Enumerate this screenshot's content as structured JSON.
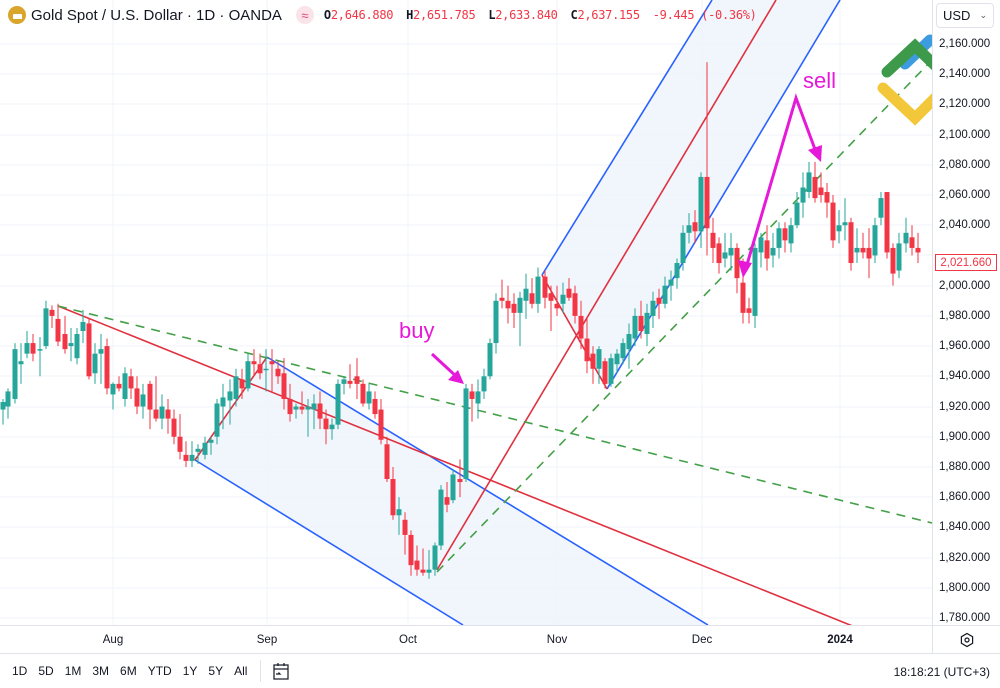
{
  "header": {
    "title": "Gold Spot / U.S. Dollar · 1D · OANDA",
    "market_status_icon": "≈",
    "ohlc": {
      "open_key": "O",
      "open": "2,646.880",
      "high_key": "H",
      "high": "2,651.785",
      "low_key": "L",
      "low": "2,633.840",
      "close_key": "C",
      "close": "2,637.155",
      "change": "-9.445 (-0.36%)"
    },
    "currency": "USD"
  },
  "price_axis": {
    "labels": [
      "2,160.000",
      "2,140.000",
      "2,120.000",
      "2,100.000",
      "2,080.000",
      "2,060.000",
      "2,040.000",
      "2,000.000",
      "1,980.000",
      "1,960.000",
      "1,940.000",
      "1,920.000",
      "1,900.000",
      "1,880.000",
      "1,860.000",
      "1,840.000",
      "1,820.000",
      "1,800.000",
      "1,780.000"
    ],
    "last_price": "2,021.660"
  },
  "time_axis": {
    "labels": [
      "Aug",
      "Sep",
      "Oct",
      "Nov",
      "Dec",
      "2024"
    ]
  },
  "annotations": {
    "buy": "buy",
    "sell": "sell"
  },
  "bottom_bar": {
    "ranges": [
      "1D",
      "5D",
      "1M",
      "3M",
      "6M",
      "YTD",
      "1Y",
      "5Y",
      "All"
    ],
    "clock": "18:18:21 (UTC+3)"
  },
  "colors": {
    "up": "#26a69a",
    "down": "#f23645",
    "channel_blue": "#2962ff",
    "channel_red": "#e0313f",
    "trend_green": "#43a047",
    "annotation": "#e619d9",
    "channel_fill": "#eef3fb"
  },
  "chart_data": {
    "type": "candlestick",
    "title": "Gold Spot / U.S. Dollar · 1D · OANDA",
    "xlabel": "",
    "ylabel": "USD",
    "ylim": [
      1770,
      2170
    ],
    "x_ticks": [
      "Aug",
      "Sep",
      "Oct",
      "Nov",
      "Dec",
      "2024"
    ],
    "y_ticks": [
      1780,
      1800,
      1820,
      1840,
      1860,
      1880,
      1900,
      1920,
      1940,
      1960,
      1980,
      2000,
      2020,
      2040,
      2060,
      2080,
      2100,
      2120,
      2140,
      2160
    ],
    "last_price": 2021.66,
    "header_ohlc": {
      "open": 2646.88,
      "high": 2651.785,
      "low": 2633.84,
      "close": 2637.155,
      "change": -9.445,
      "change_pct": -0.36
    },
    "approx_closes_by_period": [
      {
        "period": "late Jul",
        "range": [
          1910,
          1985
        ]
      },
      {
        "period": "Aug",
        "range": [
          1885,
          1975
        ]
      },
      {
        "period": "Sep",
        "range": [
          1900,
          1950
        ]
      },
      {
        "period": "early Oct",
        "low": 1810
      },
      {
        "period": "mid Oct",
        "high": 1932
      },
      {
        "period": "late Oct",
        "high": 2006
      },
      {
        "period": "early Nov",
        "low": 1932
      },
      {
        "period": "Dec 1",
        "high": 2148,
        "close": 2072
      },
      {
        "period": "mid Dec",
        "low": 1975
      },
      {
        "period": "late Dec",
        "high": 2082
      },
      {
        "period": "Jan 2024",
        "range": [
          2005,
          2060
        ]
      }
    ],
    "drawings": [
      {
        "type": "parallel_channel",
        "direction": "down",
        "color": "blue/red median",
        "start": "mid Aug",
        "end": "late Nov"
      },
      {
        "type": "parallel_channel",
        "direction": "up",
        "color": "blue/red median",
        "start": "late Oct",
        "end": "early Dec"
      },
      {
        "type": "trendline_dashed",
        "color": "green",
        "from": "Jul 27 ~1988",
        "to": "Jan ~1843"
      },
      {
        "type": "trendline_dashed",
        "color": "green",
        "from": "Oct 6 ~1810",
        "to": "Jan ~2150"
      },
      {
        "type": "arrow_label",
        "text": "buy",
        "at": "mid Oct ~1932"
      },
      {
        "type": "arrow_label",
        "text": "sell",
        "at": [
          "mid Dec ~1995",
          "late Dec ~2075"
        ]
      }
    ],
    "legend": "none",
    "grid": true
  }
}
